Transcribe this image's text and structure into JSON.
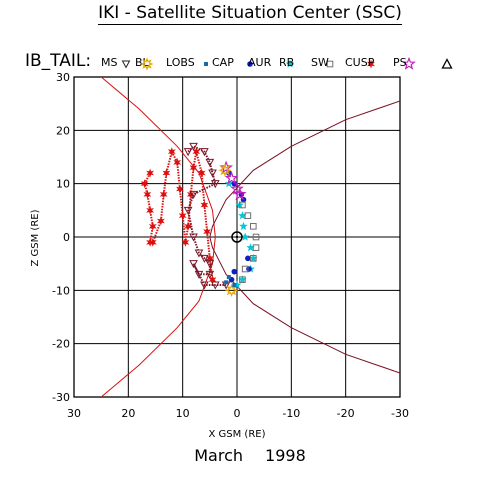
{
  "header": {
    "title": "IKI - Satellite Situation Center (SSC)"
  },
  "footer": {
    "month": "March",
    "year": "1998"
  },
  "legend": {
    "prefix": "IB_TAIL:",
    "items": [
      {
        "label": "MS",
        "symbol": "triangle-down",
        "color": "#222222"
      },
      {
        "label": "BL",
        "symbol": "sun",
        "color": "#e6a800"
      },
      {
        "label": "LOBS",
        "symbol": "square",
        "color": "#1a6aa8"
      },
      {
        "label": "CAP",
        "symbol": "circle",
        "color": "#1020c0"
      },
      {
        "label": "AUR",
        "symbol": "star",
        "color": "#00c8d8"
      },
      {
        "label": "RB",
        "symbol": "square-open",
        "color": "#707070"
      },
      {
        "label": "SW",
        "symbol": "asterisk",
        "color": "#dd1010"
      },
      {
        "label": "CUSP",
        "symbol": "star-open",
        "color": "#c020c0"
      },
      {
        "label": "PS",
        "symbol": "triangle-open",
        "color": "#000000"
      }
    ]
  },
  "chart_data": {
    "type": "scatter",
    "title": "IKI - Satellite Situation Center (SSC)",
    "xlabel": "X GSM (RE)",
    "ylabel": "Z GSM (RE)",
    "xlim": [
      30,
      -30
    ],
    "ylim": [
      -30,
      30
    ],
    "x_ticks": [
      30,
      20,
      10,
      0,
      -10,
      -20,
      -30
    ],
    "y_ticks": [
      30,
      20,
      10,
      0,
      -10,
      -20,
      -30
    ],
    "grid": true,
    "earth": [
      0,
      0
    ],
    "boundaries": [
      {
        "name": "bow shock",
        "color": "#dd1010",
        "points": [
          [
            25,
            30
          ],
          [
            18,
            24
          ],
          [
            11,
            17
          ],
          [
            7,
            12
          ],
          [
            4.5,
            5
          ],
          [
            4,
            0
          ],
          [
            4.5,
            -5
          ],
          [
            7,
            -12
          ],
          [
            11,
            -17
          ],
          [
            18,
            -24
          ],
          [
            25,
            -30
          ]
        ]
      },
      {
        "name": "magnetopause",
        "color": "#7a1020",
        "points": [
          [
            -30,
            25.5
          ],
          [
            -20,
            22
          ],
          [
            -10,
            17
          ],
          [
            -3,
            12.5
          ],
          [
            2,
            7
          ],
          [
            4.5,
            2
          ],
          [
            5,
            0
          ],
          [
            4.5,
            -2
          ],
          [
            2,
            -7
          ],
          [
            -3,
            -12.5
          ],
          [
            -10,
            -17
          ],
          [
            -20,
            -22
          ],
          [
            -30,
            -25.5
          ]
        ]
      }
    ],
    "series": [
      {
        "name": "SW",
        "color": "#dd1010",
        "points": [
          [
            16,
            12
          ],
          [
            17,
            10
          ],
          [
            16.5,
            8
          ],
          [
            16,
            5
          ],
          [
            15.5,
            2
          ],
          [
            16,
            -1
          ],
          [
            15.5,
            -1
          ],
          [
            14,
            3
          ],
          [
            13.5,
            8
          ],
          [
            13,
            12
          ],
          [
            12,
            16
          ],
          [
            11,
            14
          ],
          [
            10.5,
            9
          ],
          [
            10,
            4
          ],
          [
            9.5,
            -1
          ],
          [
            9,
            2
          ],
          [
            8.5,
            8
          ],
          [
            8,
            13
          ],
          [
            7.5,
            16
          ],
          [
            6.5,
            12
          ],
          [
            6,
            6
          ],
          [
            5.5,
            1
          ],
          [
            5,
            -4
          ],
          [
            4.5,
            -8
          ]
        ]
      },
      {
        "name": "MS",
        "color": "#7a1828",
        "points": [
          [
            9,
            16
          ],
          [
            8,
            17
          ],
          [
            6,
            16
          ],
          [
            5,
            14
          ],
          [
            4.5,
            12
          ],
          [
            4,
            10
          ],
          [
            8,
            8
          ],
          [
            9,
            5
          ],
          [
            8,
            0
          ],
          [
            7,
            -3
          ],
          [
            6,
            -4
          ],
          [
            5,
            -5
          ],
          [
            5,
            -7
          ],
          [
            7,
            -7
          ],
          [
            8,
            -5
          ],
          [
            6,
            -9
          ],
          [
            4,
            -9
          ],
          [
            2,
            -9
          ]
        ]
      },
      {
        "name": "AUR",
        "color": "#00c8d8",
        "points": [
          [
            1.5,
            10
          ],
          [
            -0.5,
            6
          ],
          [
            -1,
            4
          ],
          [
            -1.2,
            2
          ],
          [
            -1.5,
            0
          ],
          [
            -2.5,
            -2
          ],
          [
            -3,
            -4
          ],
          [
            -2.5,
            -6
          ],
          [
            -1,
            -8
          ],
          [
            0,
            -9
          ]
        ]
      },
      {
        "name": "CAP",
        "color": "#1020c0",
        "points": [
          [
            1.5,
            12
          ],
          [
            0.5,
            10
          ],
          [
            -0.8,
            8
          ],
          [
            -1.2,
            7
          ],
          [
            -2,
            -4
          ],
          [
            -2.2,
            -6
          ],
          [
            0.5,
            -6.5
          ],
          [
            1,
            -8
          ]
        ]
      },
      {
        "name": "CUSP",
        "color": "#c020c0",
        "points": [
          [
            2,
            13
          ],
          [
            1,
            11
          ],
          [
            0,
            9
          ],
          [
            -0.5,
            8
          ]
        ]
      },
      {
        "name": "RB",
        "color": "#707070",
        "points": [
          [
            -1,
            6
          ],
          [
            -2,
            4
          ],
          [
            -3,
            2
          ],
          [
            -3.5,
            0
          ],
          [
            -3.5,
            -2
          ],
          [
            -3,
            -4
          ],
          [
            -1.5,
            -6
          ],
          [
            -1,
            -8
          ]
        ]
      },
      {
        "name": "BL",
        "color": "#e6a800",
        "points": [
          [
            2.2,
            12.5
          ],
          [
            1,
            -10
          ]
        ]
      },
      {
        "name": "LOBS",
        "color": "#1a6aa8",
        "points": [
          [
            1.5,
            -7.5
          ],
          [
            2,
            -8.5
          ],
          [
            0.5,
            -9
          ]
        ]
      }
    ]
  }
}
